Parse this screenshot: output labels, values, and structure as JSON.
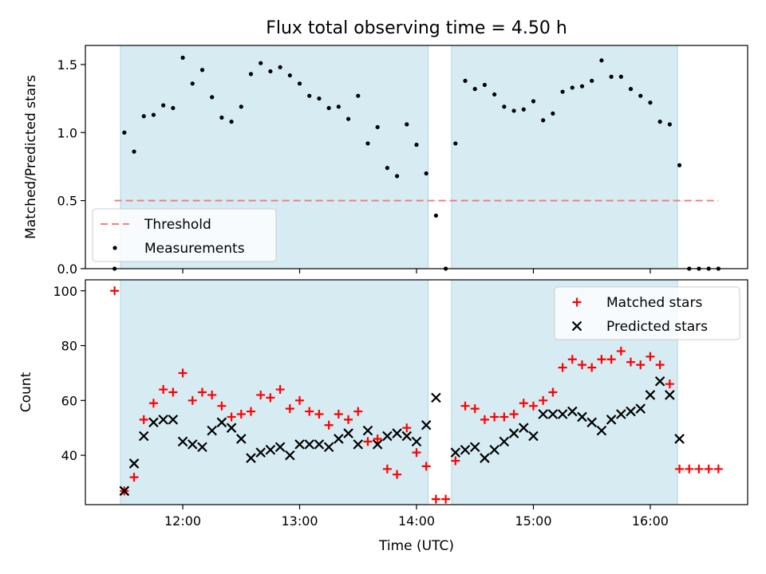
{
  "chart_data": [
    {
      "type": "scatter",
      "title": "Flux total observing time = 4.50 h",
      "xlabel": "",
      "ylabel": "Matched/Predicted stars",
      "xlim": [
        "11:10",
        "16:50"
      ],
      "ylim": [
        0,
        1.64
      ],
      "yticks": [
        0.0,
        0.5,
        1.0,
        1.5
      ],
      "ytick_labels": [
        "0.0",
        "0.5",
        "1.0",
        "1.5"
      ],
      "xticks": [
        "12:00",
        "13:00",
        "14:00",
        "15:00",
        "16:00"
      ],
      "shaded_intervals": [
        [
          "11:28",
          "14:06"
        ],
        [
          "14:18",
          "16:14"
        ]
      ],
      "threshold": {
        "label": "Threshold",
        "value": 0.5,
        "x_range": [
          "11:25",
          "16:35"
        ],
        "color": "#f08080"
      },
      "legend": {
        "position": "lower-left",
        "entries": [
          "Threshold",
          "Measurements"
        ]
      },
      "series": [
        {
          "name": "Measurements",
          "color": "#000000",
          "marker": "dot",
          "x": [
            "11:25",
            "11:30",
            "11:35",
            "11:40",
            "11:45",
            "11:50",
            "11:55",
            "12:00",
            "12:05",
            "12:10",
            "12:15",
            "12:20",
            "12:25",
            "12:30",
            "12:35",
            "12:40",
            "12:45",
            "12:50",
            "12:55",
            "13:00",
            "13:05",
            "13:10",
            "13:15",
            "13:20",
            "13:25",
            "13:30",
            "13:35",
            "13:40",
            "13:45",
            "13:50",
            "13:55",
            "14:00",
            "14:05",
            "14:10",
            "14:15",
            "14:20",
            "14:25",
            "14:30",
            "14:35",
            "14:40",
            "14:45",
            "14:50",
            "14:55",
            "15:00",
            "15:05",
            "15:10",
            "15:15",
            "15:20",
            "15:25",
            "15:30",
            "15:35",
            "15:40",
            "15:45",
            "15:50",
            "15:55",
            "16:00",
            "16:05",
            "16:10",
            "16:15",
            "16:20",
            "16:25",
            "16:30",
            "16:35"
          ],
          "y": [
            0.0,
            1.0,
            0.86,
            1.12,
            1.13,
            1.2,
            1.18,
            1.55,
            1.36,
            1.46,
            1.26,
            1.11,
            1.08,
            1.19,
            1.43,
            1.51,
            1.45,
            1.48,
            1.42,
            1.36,
            1.27,
            1.25,
            1.18,
            1.19,
            1.1,
            1.27,
            0.92,
            1.04,
            0.74,
            0.68,
            1.06,
            0.91,
            0.7,
            0.39,
            0.0,
            0.92,
            1.38,
            1.32,
            1.35,
            1.28,
            1.19,
            1.16,
            1.17,
            1.23,
            1.09,
            1.14,
            1.3,
            1.33,
            1.34,
            1.38,
            1.53,
            1.41,
            1.41,
            1.32,
            1.27,
            1.22,
            1.08,
            1.06,
            0.76,
            0.0,
            0.0,
            0.0,
            0.0
          ]
        }
      ]
    },
    {
      "type": "scatter",
      "title": "",
      "xlabel": "Time (UTC)",
      "ylabel": "Count",
      "xlim": [
        "11:10",
        "16:50"
      ],
      "ylim": [
        22,
        104
      ],
      "yticks": [
        40,
        60,
        80,
        100
      ],
      "ytick_labels": [
        "40",
        "60",
        "80",
        "100"
      ],
      "xticks": [
        "12:00",
        "13:00",
        "14:00",
        "15:00",
        "16:00"
      ],
      "shaded_intervals": [
        [
          "11:28",
          "14:06"
        ],
        [
          "14:18",
          "16:14"
        ]
      ],
      "legend": {
        "position": "top-right",
        "entries": [
          "Matched stars",
          "Predicted stars"
        ]
      },
      "series": [
        {
          "name": "Matched stars",
          "color": "#ff0000",
          "marker": "plus",
          "x": [
            "11:25",
            "11:30",
            "11:35",
            "11:40",
            "11:45",
            "11:50",
            "11:55",
            "12:00",
            "12:05",
            "12:10",
            "12:15",
            "12:20",
            "12:25",
            "12:30",
            "12:35",
            "12:40",
            "12:45",
            "12:50",
            "12:55",
            "13:00",
            "13:05",
            "13:10",
            "13:15",
            "13:20",
            "13:25",
            "13:30",
            "13:35",
            "13:40",
            "13:45",
            "13:50",
            "13:55",
            "14:00",
            "14:05",
            "14:10",
            "14:15",
            "14:20",
            "14:25",
            "14:30",
            "14:35",
            "14:40",
            "14:45",
            "14:50",
            "14:55",
            "15:00",
            "15:05",
            "15:10",
            "15:15",
            "15:20",
            "15:25",
            "15:30",
            "15:35",
            "15:40",
            "15:45",
            "15:50",
            "15:55",
            "16:00",
            "16:05",
            "16:10",
            "16:15",
            "16:20",
            "16:25",
            "16:30",
            "16:35"
          ],
          "y": [
            100,
            27,
            32,
            53,
            59,
            64,
            63,
            70,
            60,
            63,
            62,
            58,
            54,
            55,
            56,
            62,
            61,
            64,
            57,
            60,
            56,
            55,
            51,
            55,
            53,
            56,
            45,
            46,
            35,
            33,
            50,
            41,
            36,
            24,
            24,
            38,
            58,
            57,
            53,
            54,
            54,
            55,
            59,
            58,
            60,
            63,
            72,
            75,
            73,
            72,
            75,
            75,
            78,
            74,
            73,
            76,
            73,
            66,
            35,
            35,
            35,
            35,
            35
          ]
        },
        {
          "name": "Predicted stars",
          "color": "#000000",
          "marker": "x",
          "x": [
            "11:30",
            "11:35",
            "11:40",
            "11:45",
            "11:50",
            "11:55",
            "12:00",
            "12:05",
            "12:10",
            "12:15",
            "12:20",
            "12:25",
            "12:30",
            "12:35",
            "12:40",
            "12:45",
            "12:50",
            "12:55",
            "13:00",
            "13:05",
            "13:10",
            "13:15",
            "13:20",
            "13:25",
            "13:30",
            "13:35",
            "13:40",
            "13:45",
            "13:50",
            "13:55",
            "14:00",
            "14:05",
            "14:10",
            "14:20",
            "14:25",
            "14:30",
            "14:35",
            "14:40",
            "14:45",
            "14:50",
            "14:55",
            "15:00",
            "15:05",
            "15:10",
            "15:15",
            "15:20",
            "15:25",
            "15:30",
            "15:35",
            "15:40",
            "15:45",
            "15:50",
            "15:55",
            "16:00",
            "16:05",
            "16:10",
            "16:15"
          ],
          "y": [
            27,
            37,
            47,
            52,
            53,
            53,
            45,
            44,
            43,
            49,
            52,
            50,
            46,
            39,
            41,
            42,
            43,
            40,
            44,
            44,
            44,
            43,
            46,
            48,
            44,
            49,
            44,
            47,
            48,
            47,
            45,
            51,
            61,
            41,
            42,
            43,
            39,
            42,
            45,
            48,
            50,
            47,
            55,
            55,
            55,
            56,
            54,
            52,
            49,
            53,
            55,
            56,
            57,
            62,
            67,
            62,
            46
          ]
        }
      ]
    }
  ]
}
